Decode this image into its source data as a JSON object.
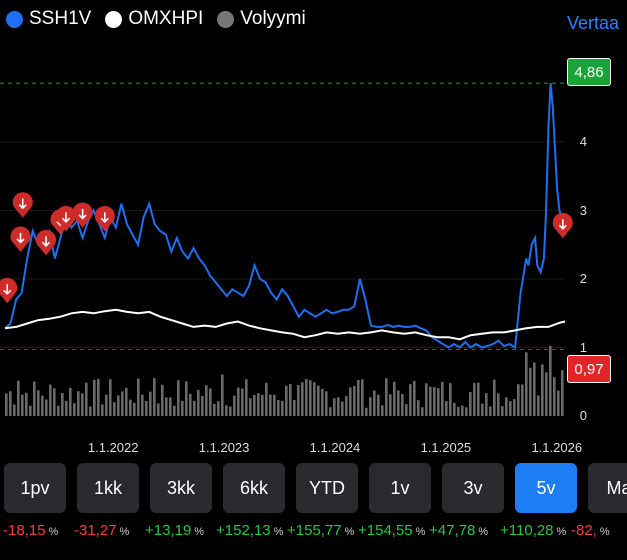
{
  "legend": [
    {
      "label": "SSH1V",
      "color": "#1e6ff2"
    },
    {
      "label": "OMXHPI",
      "color": "#ffffff"
    },
    {
      "label": "Volyymi",
      "color": "#777777"
    }
  ],
  "compare_label": "Vertaa",
  "price_tags": {
    "high": "4,86",
    "low": "0,97"
  },
  "y_axis_labels": [
    "4",
    "3",
    "2",
    "1",
    "0"
  ],
  "x_axis_labels": [
    "1.1.2022",
    "1.1.2023",
    "1.1.2024",
    "1.1.2025",
    "1.1.2026"
  ],
  "tabs": [
    {
      "label": "1pv",
      "active": false
    },
    {
      "label": "1kk",
      "active": false
    },
    {
      "label": "3kk",
      "active": false
    },
    {
      "label": "6kk",
      "active": false
    },
    {
      "label": "YTD",
      "active": false
    },
    {
      "label": "1v",
      "active": false
    },
    {
      "label": "3v",
      "active": false
    },
    {
      "label": "5v",
      "active": true
    },
    {
      "label": "Ma",
      "active": false
    }
  ],
  "changes": [
    {
      "value": "-18,15",
      "sign": "neg"
    },
    {
      "value": "-31,27",
      "sign": "neg"
    },
    {
      "value": "+13,19",
      "sign": "pos"
    },
    {
      "value": "+152,13",
      "sign": "pos"
    },
    {
      "value": "+155,77",
      "sign": "pos"
    },
    {
      "value": "+154,55",
      "sign": "pos"
    },
    {
      "value": "+47,78",
      "sign": "pos"
    },
    {
      "value": "+110,28",
      "sign": "pos"
    },
    {
      "value": "-82,",
      "sign": "neg"
    }
  ],
  "pct_symbol": "%",
  "chart_data": {
    "type": "line",
    "x_labels": [
      "1.1.2022",
      "1.1.2023",
      "1.1.2024",
      "1.1.2025",
      "1.1.2026"
    ],
    "ylim": [
      0,
      5
    ],
    "series": [
      {
        "name": "SSH1V",
        "color": "#1e6ff2",
        "points": [
          [
            2021.0,
            1.28
          ],
          [
            2021.05,
            1.35
          ],
          [
            2021.1,
            1.7
          ],
          [
            2021.15,
            1.8
          ],
          [
            2021.2,
            2.3
          ],
          [
            2021.25,
            2.7
          ],
          [
            2021.3,
            2.5
          ],
          [
            2021.35,
            2.6
          ],
          [
            2021.4,
            2.7
          ],
          [
            2021.45,
            2.3
          ],
          [
            2021.5,
            2.6
          ],
          [
            2021.55,
            2.9
          ],
          [
            2021.6,
            2.75
          ],
          [
            2021.65,
            2.85
          ],
          [
            2021.7,
            2.6
          ],
          [
            2021.75,
            2.85
          ],
          [
            2021.8,
            3.0
          ],
          [
            2021.85,
            2.8
          ],
          [
            2021.9,
            2.6
          ],
          [
            2021.95,
            2.9
          ],
          [
            2022.0,
            2.75
          ],
          [
            2022.05,
            3.1
          ],
          [
            2022.1,
            2.8
          ],
          [
            2022.15,
            2.65
          ],
          [
            2022.2,
            2.5
          ],
          [
            2022.25,
            2.9
          ],
          [
            2022.3,
            3.1
          ],
          [
            2022.35,
            2.8
          ],
          [
            2022.4,
            2.7
          ],
          [
            2022.45,
            2.65
          ],
          [
            2022.5,
            2.4
          ],
          [
            2022.55,
            2.6
          ],
          [
            2022.6,
            2.4
          ],
          [
            2022.65,
            2.3
          ],
          [
            2022.7,
            2.45
          ],
          [
            2022.75,
            2.3
          ],
          [
            2022.8,
            2.2
          ],
          [
            2022.85,
            2.05
          ],
          [
            2022.9,
            1.95
          ],
          [
            2022.95,
            1.85
          ],
          [
            2023.0,
            1.75
          ],
          [
            2023.05,
            1.85
          ],
          [
            2023.1,
            1.8
          ],
          [
            2023.15,
            1.75
          ],
          [
            2023.2,
            1.9
          ],
          [
            2023.25,
            2.2
          ],
          [
            2023.3,
            2.0
          ],
          [
            2023.35,
            1.95
          ],
          [
            2023.4,
            1.8
          ],
          [
            2023.45,
            1.7
          ],
          [
            2023.5,
            1.85
          ],
          [
            2023.55,
            1.75
          ],
          [
            2023.6,
            1.6
          ],
          [
            2023.65,
            1.45
          ],
          [
            2023.7,
            1.55
          ],
          [
            2023.75,
            1.5
          ],
          [
            2023.8,
            1.45
          ],
          [
            2023.85,
            1.5
          ],
          [
            2023.9,
            1.55
          ],
          [
            2023.95,
            1.5
          ],
          [
            2024.0,
            1.52
          ],
          [
            2024.05,
            1.55
          ],
          [
            2024.1,
            1.55
          ],
          [
            2024.15,
            1.6
          ],
          [
            2024.2,
            2.0
          ],
          [
            2024.25,
            1.7
          ],
          [
            2024.3,
            1.32
          ],
          [
            2024.35,
            1.3
          ],
          [
            2024.4,
            1.3
          ],
          [
            2024.45,
            1.33
          ],
          [
            2024.5,
            1.3
          ],
          [
            2024.55,
            1.32
          ],
          [
            2024.6,
            1.3
          ],
          [
            2024.65,
            1.3
          ],
          [
            2024.7,
            1.32
          ],
          [
            2024.75,
            1.28
          ],
          [
            2024.8,
            1.25
          ],
          [
            2024.85,
            1.15
          ],
          [
            2024.9,
            1.1
          ],
          [
            2024.95,
            1.05
          ],
          [
            2025.0,
            1.0
          ],
          [
            2025.05,
            1.05
          ],
          [
            2025.1,
            1.0
          ],
          [
            2025.15,
            1.08
          ],
          [
            2025.2,
            1.0
          ],
          [
            2025.25,
            1.05
          ],
          [
            2025.3,
            1.0
          ],
          [
            2025.35,
            1.02
          ],
          [
            2025.4,
            1.05
          ],
          [
            2025.45,
            1.1
          ],
          [
            2025.5,
            1.02
          ],
          [
            2025.55,
            1.05
          ],
          [
            2025.6,
            1.0
          ],
          [
            2025.65,
            1.8
          ],
          [
            2025.68,
            2.1
          ],
          [
            2025.7,
            2.3
          ],
          [
            2025.72,
            2.2
          ],
          [
            2025.75,
            2.5
          ],
          [
            2025.78,
            2.6
          ],
          [
            2025.8,
            2.2
          ],
          [
            2025.83,
            2.1
          ],
          [
            2025.86,
            2.3
          ],
          [
            2025.88,
            3.0
          ],
          [
            2025.9,
            4.2
          ],
          [
            2025.92,
            4.86
          ],
          [
            2025.94,
            4.5
          ],
          [
            2025.96,
            3.9
          ],
          [
            2025.98,
            3.3
          ],
          [
            2026.0,
            3.0
          ],
          [
            2026.02,
            2.9
          ]
        ]
      },
      {
        "name": "OMXHPI",
        "color": "#ffffff",
        "points": [
          [
            2021.0,
            1.28
          ],
          [
            2021.1,
            1.3
          ],
          [
            2021.2,
            1.35
          ],
          [
            2021.3,
            1.4
          ],
          [
            2021.4,
            1.42
          ],
          [
            2021.5,
            1.45
          ],
          [
            2021.6,
            1.5
          ],
          [
            2021.7,
            1.52
          ],
          [
            2021.8,
            1.5
          ],
          [
            2021.9,
            1.53
          ],
          [
            2022.0,
            1.55
          ],
          [
            2022.1,
            1.52
          ],
          [
            2022.2,
            1.5
          ],
          [
            2022.3,
            1.52
          ],
          [
            2022.4,
            1.45
          ],
          [
            2022.5,
            1.4
          ],
          [
            2022.6,
            1.35
          ],
          [
            2022.7,
            1.3
          ],
          [
            2022.8,
            1.32
          ],
          [
            2022.9,
            1.3
          ],
          [
            2023.0,
            1.35
          ],
          [
            2023.1,
            1.38
          ],
          [
            2023.2,
            1.32
          ],
          [
            2023.3,
            1.28
          ],
          [
            2023.4,
            1.25
          ],
          [
            2023.5,
            1.22
          ],
          [
            2023.6,
            1.2
          ],
          [
            2023.7,
            1.15
          ],
          [
            2023.8,
            1.18
          ],
          [
            2023.9,
            1.22
          ],
          [
            2024.0,
            1.2
          ],
          [
            2024.1,
            1.22
          ],
          [
            2024.2,
            1.2
          ],
          [
            2024.3,
            1.22
          ],
          [
            2024.4,
            1.25
          ],
          [
            2024.5,
            1.22
          ],
          [
            2024.6,
            1.2
          ],
          [
            2024.7,
            1.22
          ],
          [
            2024.8,
            1.18
          ],
          [
            2024.9,
            1.15
          ],
          [
            2025.0,
            1.15
          ],
          [
            2025.1,
            1.12
          ],
          [
            2025.2,
            1.18
          ],
          [
            2025.3,
            1.2
          ],
          [
            2025.4,
            1.22
          ],
          [
            2025.5,
            1.22
          ],
          [
            2025.6,
            1.25
          ],
          [
            2025.7,
            1.28
          ],
          [
            2025.8,
            1.3
          ],
          [
            2025.9,
            1.3
          ],
          [
            2026.0,
            1.36
          ],
          [
            2026.05,
            1.38
          ]
        ]
      },
      {
        "name": "Volyymi",
        "color": "#777777"
      }
    ],
    "markers": [
      [
        2021.02,
        1.85
      ],
      [
        2021.16,
        3.1
      ],
      [
        2021.14,
        2.6
      ],
      [
        2021.37,
        2.55
      ],
      [
        2021.5,
        2.85
      ],
      [
        2021.55,
        2.9
      ],
      [
        2021.7,
        2.95
      ],
      [
        2021.9,
        2.9
      ],
      [
        2026.03,
        2.8
      ]
    ]
  }
}
